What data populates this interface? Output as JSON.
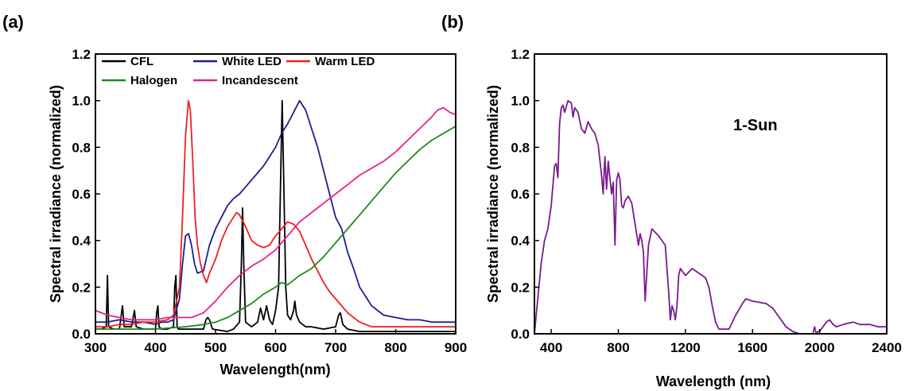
{
  "chart_data": [
    {
      "panel_label": "(a)",
      "type": "line",
      "xlabel": "Wavelength(nm)",
      "ylabel": "Spectral irradiance (normalized)",
      "xlim": [
        300,
        900
      ],
      "ylim": [
        0,
        1.2
      ],
      "xticks": [
        "300",
        "400",
        "500",
        "600",
        "700",
        "800",
        "900"
      ],
      "yticks": [
        "0.0",
        "0.2",
        "0.4",
        "0.6",
        "0.8",
        "1.0",
        "1.2"
      ],
      "legend_placement": "top-left",
      "series": [
        {
          "name": "CFL",
          "color": "#000000",
          "x": [
            300,
            310,
            318,
            320,
            322,
            330,
            340,
            345,
            348,
            360,
            365,
            368,
            380,
            400,
            402,
            404,
            406,
            410,
            420,
            430,
            432,
            434,
            436,
            438,
            440,
            460,
            480,
            484,
            487,
            490,
            495,
            520,
            530,
            540,
            543,
            545,
            547,
            550,
            560,
            570,
            575,
            580,
            585,
            590,
            595,
            600,
            605,
            608,
            611,
            614,
            617,
            620,
            625,
            630,
            632,
            635,
            640,
            650,
            660,
            680,
            700,
            705,
            708,
            712,
            720,
            740,
            760,
            800,
            850,
            900
          ],
          "y": [
            0.02,
            0.02,
            0.03,
            0.25,
            0.03,
            0.02,
            0.02,
            0.12,
            0.03,
            0.03,
            0.1,
            0.03,
            0.02,
            0.02,
            0.09,
            0.12,
            0.03,
            0.02,
            0.02,
            0.03,
            0.2,
            0.25,
            0.03,
            0.02,
            0.02,
            0.02,
            0.02,
            0.06,
            0.07,
            0.06,
            0.02,
            0.01,
            0.02,
            0.05,
            0.3,
            0.54,
            0.3,
            0.05,
            0.03,
            0.05,
            0.11,
            0.06,
            0.12,
            0.06,
            0.04,
            0.1,
            0.2,
            0.6,
            1.0,
            0.6,
            0.2,
            0.08,
            0.06,
            0.1,
            0.14,
            0.08,
            0.05,
            0.03,
            0.03,
            0.02,
            0.03,
            0.08,
            0.09,
            0.04,
            0.02,
            0.01,
            0.01,
            0.01,
            0.01,
            0.01
          ]
        },
        {
          "name": "White LED",
          "color": "#1f1f8a",
          "x": [
            300,
            320,
            340,
            360,
            380,
            400,
            410,
            420,
            430,
            440,
            445,
            450,
            455,
            460,
            465,
            470,
            480,
            490,
            500,
            510,
            520,
            530,
            540,
            550,
            560,
            570,
            580,
            590,
            600,
            610,
            620,
            630,
            640,
            650,
            660,
            670,
            680,
            690,
            700,
            710,
            720,
            730,
            740,
            750,
            760,
            780,
            800,
            820,
            840,
            860,
            880,
            900
          ],
          "y": [
            0.05,
            0.05,
            0.06,
            0.05,
            0.05,
            0.04,
            0.05,
            0.05,
            0.06,
            0.15,
            0.3,
            0.42,
            0.43,
            0.38,
            0.3,
            0.26,
            0.27,
            0.38,
            0.45,
            0.5,
            0.55,
            0.58,
            0.6,
            0.63,
            0.66,
            0.69,
            0.72,
            0.76,
            0.8,
            0.86,
            0.9,
            0.95,
            1.0,
            0.96,
            0.88,
            0.8,
            0.7,
            0.6,
            0.5,
            0.45,
            0.35,
            0.28,
            0.2,
            0.16,
            0.12,
            0.08,
            0.07,
            0.06,
            0.06,
            0.05,
            0.05,
            0.05
          ]
        },
        {
          "name": "Warm LED",
          "color": "#ee2020",
          "x": [
            300,
            320,
            340,
            360,
            380,
            400,
            420,
            430,
            440,
            445,
            450,
            455,
            458,
            462,
            466,
            470,
            475,
            480,
            485,
            490,
            500,
            510,
            520,
            530,
            535,
            540,
            550,
            560,
            570,
            580,
            590,
            600,
            610,
            620,
            630,
            640,
            650,
            660,
            670,
            680,
            690,
            700,
            710,
            720,
            730,
            740,
            750,
            760,
            780,
            800,
            850,
            900
          ],
          "y": [
            0.03,
            0.03,
            0.04,
            0.04,
            0.05,
            0.05,
            0.06,
            0.08,
            0.2,
            0.5,
            0.85,
            1.0,
            0.96,
            0.75,
            0.5,
            0.38,
            0.3,
            0.25,
            0.22,
            0.26,
            0.32,
            0.4,
            0.46,
            0.5,
            0.52,
            0.51,
            0.46,
            0.4,
            0.38,
            0.37,
            0.38,
            0.42,
            0.45,
            0.48,
            0.47,
            0.44,
            0.38,
            0.32,
            0.27,
            0.22,
            0.18,
            0.15,
            0.12,
            0.09,
            0.07,
            0.05,
            0.04,
            0.03,
            0.03,
            0.03,
            0.03,
            0.03
          ]
        },
        {
          "name": "Halogen",
          "color": "#1f8a1f",
          "x": [
            300,
            350,
            400,
            450,
            480,
            500,
            520,
            540,
            560,
            580,
            600,
            610,
            620,
            640,
            660,
            680,
            700,
            720,
            740,
            760,
            780,
            800,
            820,
            840,
            860,
            880,
            900
          ],
          "y": [
            0.02,
            0.02,
            0.02,
            0.03,
            0.04,
            0.05,
            0.07,
            0.1,
            0.13,
            0.17,
            0.2,
            0.22,
            0.21,
            0.25,
            0.28,
            0.33,
            0.39,
            0.45,
            0.51,
            0.57,
            0.63,
            0.69,
            0.74,
            0.79,
            0.83,
            0.86,
            0.89
          ]
        },
        {
          "name": "Incandescent",
          "color": "#e8208a",
          "x": [
            300,
            320,
            340,
            360,
            380,
            400,
            420,
            440,
            460,
            480,
            500,
            520,
            540,
            560,
            580,
            600,
            620,
            640,
            660,
            680,
            700,
            720,
            740,
            760,
            780,
            800,
            820,
            840,
            860,
            870,
            880,
            890,
            900
          ],
          "y": [
            0.1,
            0.08,
            0.07,
            0.06,
            0.06,
            0.06,
            0.07,
            0.07,
            0.07,
            0.09,
            0.14,
            0.2,
            0.25,
            0.29,
            0.32,
            0.36,
            0.42,
            0.48,
            0.52,
            0.56,
            0.6,
            0.64,
            0.68,
            0.71,
            0.74,
            0.78,
            0.83,
            0.88,
            0.93,
            0.96,
            0.97,
            0.95,
            0.94
          ]
        }
      ]
    },
    {
      "panel_label": "(b)",
      "type": "line",
      "xlabel": "Wavelength (nm)",
      "ylabel": "Spectral irradiance (normalized)",
      "xlim": [
        300,
        2400
      ],
      "ylim": [
        0,
        1.2
      ],
      "xticks": [
        "400",
        "800",
        "1200",
        "1600",
        "2000",
        "2400"
      ],
      "yticks": [
        "0.0",
        "0.2",
        "0.4",
        "0.6",
        "0.8",
        "1.0",
        "1.2"
      ],
      "annotation": "1-Sun",
      "series": [
        {
          "color": "#7a1a8f",
          "x": [
            300,
            320,
            340,
            360,
            380,
            400,
            420,
            430,
            440,
            450,
            460,
            470,
            480,
            500,
            520,
            530,
            540,
            560,
            580,
            600,
            620,
            640,
            660,
            680,
            700,
            710,
            720,
            730,
            740,
            750,
            760,
            770,
            780,
            790,
            800,
            810,
            820,
            830,
            840,
            860,
            880,
            900,
            920,
            930,
            940,
            950,
            960,
            980,
            1000,
            1040,
            1080,
            1100,
            1110,
            1120,
            1130,
            1140,
            1150,
            1160,
            1170,
            1180,
            1200,
            1240,
            1280,
            1320,
            1340,
            1360,
            1380,
            1400,
            1420,
            1440,
            1460,
            1500,
            1540,
            1560,
            1600,
            1680,
            1720,
            1760,
            1800,
            1840,
            1880,
            1920,
            1960,
            1970,
            1980,
            1990,
            2000,
            2020,
            2040,
            2060,
            2080,
            2100,
            2140,
            2200,
            2240,
            2300,
            2350,
            2400
          ],
          "y": [
            0.0,
            0.15,
            0.3,
            0.4,
            0.45,
            0.55,
            0.72,
            0.73,
            0.67,
            0.9,
            0.97,
            0.98,
            0.95,
            1.0,
            0.99,
            0.93,
            0.97,
            0.95,
            0.88,
            0.86,
            0.91,
            0.88,
            0.86,
            0.81,
            0.68,
            0.6,
            0.76,
            0.62,
            0.74,
            0.67,
            0.6,
            0.65,
            0.38,
            0.66,
            0.69,
            0.66,
            0.55,
            0.54,
            0.57,
            0.59,
            0.56,
            0.47,
            0.38,
            0.43,
            0.4,
            0.35,
            0.14,
            0.38,
            0.45,
            0.42,
            0.38,
            0.18,
            0.06,
            0.12,
            0.1,
            0.06,
            0.12,
            0.25,
            0.28,
            0.27,
            0.25,
            0.28,
            0.26,
            0.24,
            0.2,
            0.12,
            0.05,
            0.02,
            0.02,
            0.02,
            0.02,
            0.08,
            0.13,
            0.15,
            0.14,
            0.13,
            0.11,
            0.07,
            0.03,
            0.01,
            0.0,
            0.0,
            0.0,
            0.03,
            0.0,
            0.01,
            0.01,
            0.03,
            0.05,
            0.06,
            0.04,
            0.03,
            0.04,
            0.05,
            0.04,
            0.04,
            0.03,
            0.03
          ]
        }
      ]
    }
  ]
}
